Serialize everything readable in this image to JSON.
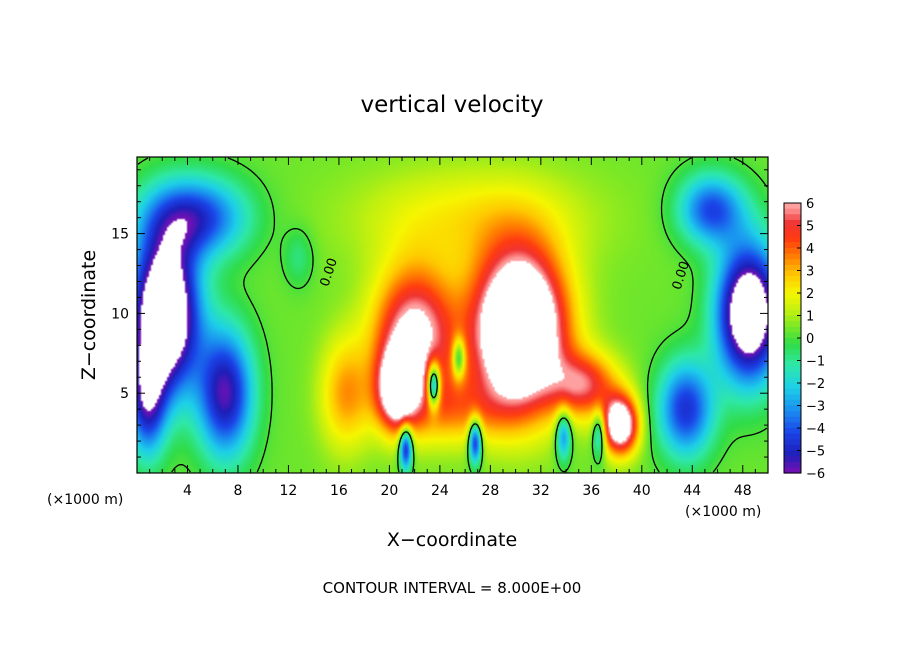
{
  "chart_data": {
    "type": "heatmap",
    "title": "vertical velocity",
    "xlabel": "X−coordinate",
    "ylabel": "Z−coordinate",
    "x_unit_label": "(×1000 m)",
    "y_unit_label": "(×1000 m)",
    "annotation": "CONTOUR INTERVAL = 8.000E+00",
    "xlim": [
      0,
      50
    ],
    "ylim": [
      0,
      19.8
    ],
    "x_ticks": [
      "4",
      "8",
      "12",
      "16",
      "20",
      "24",
      "28",
      "32",
      "36",
      "40",
      "44",
      "48"
    ],
    "y_ticks": [
      "5",
      "10",
      "15"
    ],
    "contour_labels": [
      {
        "text": "0.00",
        "x": 15.5,
        "z": 12.5
      },
      {
        "text": "0.00",
        "x": 43.4,
        "z": 12.3
      }
    ],
    "colorbar": {
      "ticks": [
        "6",
        "5",
        "4",
        "3",
        "2",
        "1",
        "0",
        "−1",
        "−2",
        "−3",
        "−4",
        "−5",
        "−6"
      ],
      "range": [
        -6,
        6
      ],
      "saturated_high_color": "#ffffff",
      "saturated_low_color": "#ffffff",
      "stops": [
        {
          "v": -6,
          "c": "#7a10b4"
        },
        {
          "v": -5.2,
          "c": "#1e1eb8"
        },
        {
          "v": -4.2,
          "c": "#1a44e8"
        },
        {
          "v": -3.2,
          "c": "#1a90f0"
        },
        {
          "v": -2.2,
          "c": "#1ed0e8"
        },
        {
          "v": -1.2,
          "c": "#2ee8a8"
        },
        {
          "v": -0.3,
          "c": "#30dc48"
        },
        {
          "v": 0.5,
          "c": "#7ae826"
        },
        {
          "v": 1.2,
          "c": "#c0f010"
        },
        {
          "v": 2.0,
          "c": "#f6f600"
        },
        {
          "v": 2.8,
          "c": "#ffc800"
        },
        {
          "v": 3.5,
          "c": "#ff8800"
        },
        {
          "v": 4.4,
          "c": "#ff3c10"
        },
        {
          "v": 5.1,
          "c": "#f03434"
        },
        {
          "v": 5.8,
          "c": "#ffa0a0"
        }
      ]
    },
    "features": [
      {
        "kind": "updraft",
        "x": 30.3,
        "z": 9.0,
        "sx": 3.6,
        "sz": 4.8,
        "amp": 11
      },
      {
        "kind": "updraft",
        "x": 22.0,
        "z": 8.6,
        "sx": 3.2,
        "sz": 4.2,
        "amp": 6.5
      },
      {
        "kind": "updraft",
        "x": 20.6,
        "z": 5.3,
        "sx": 1.5,
        "sz": 2.4,
        "amp": 6.5
      },
      {
        "kind": "updraft",
        "x": 35.5,
        "z": 5.5,
        "sx": 2.6,
        "sz": 2.0,
        "amp": 4.5
      },
      {
        "kind": "updraft",
        "x": 38.3,
        "z": 3.0,
        "sx": 1.4,
        "sz": 1.8,
        "amp": 8
      },
      {
        "kind": "updraft",
        "x": 26.5,
        "z": 16.0,
        "sx": 9.0,
        "sz": 3.2,
        "amp": 1.8
      },
      {
        "kind": "updraft",
        "x": 16.5,
        "z": 5.0,
        "sx": 2.0,
        "sz": 3.5,
        "amp": 2.8
      },
      {
        "kind": "updraft",
        "x": 24.8,
        "z": 4.0,
        "sx": 5.0,
        "sz": 2.2,
        "amp": 2.6
      },
      {
        "kind": "downdraft",
        "x": 2.2,
        "z": 10.0,
        "sx": 2.6,
        "sz": 4.8,
        "amp": -10
      },
      {
        "kind": "downdraft",
        "x": 4.6,
        "z": 16.0,
        "sx": 4.0,
        "sz": 2.5,
        "amp": -5
      },
      {
        "kind": "downdraft",
        "x": 7.0,
        "z": 5.0,
        "sx": 2.2,
        "sz": 4.0,
        "amp": -6
      },
      {
        "kind": "downdraft",
        "x": 0.8,
        "z": 4.5,
        "sx": 1.5,
        "sz": 3.5,
        "amp": -5
      },
      {
        "kind": "downdraft",
        "x": 48.5,
        "z": 10.0,
        "sx": 2.5,
        "sz": 4.2,
        "amp": -9
      },
      {
        "kind": "downdraft",
        "x": 45.5,
        "z": 16.5,
        "sx": 2.6,
        "sz": 2.2,
        "amp": -4.5
      },
      {
        "kind": "downdraft",
        "x": 43.5,
        "z": 4.0,
        "sx": 2.2,
        "sz": 3.0,
        "amp": -5
      },
      {
        "kind": "downdraft",
        "x": 23.5,
        "z": 5.5,
        "sx": 0.5,
        "sz": 1.4,
        "amp": -7
      },
      {
        "kind": "downdraft",
        "x": 25.5,
        "z": 7.2,
        "sx": 0.5,
        "sz": 1.3,
        "amp": -4
      },
      {
        "kind": "downdraft",
        "x": 21.3,
        "z": 1.6,
        "sx": 0.5,
        "sz": 1.4,
        "amp": -6
      },
      {
        "kind": "downdraft",
        "x": 26.8,
        "z": 2.0,
        "sx": 0.5,
        "sz": 1.4,
        "amp": -6
      },
      {
        "kind": "downdraft",
        "x": 33.8,
        "z": 2.4,
        "sx": 0.6,
        "sz": 1.6,
        "amp": -4
      },
      {
        "kind": "downdraft",
        "x": 36.6,
        "z": 2.5,
        "sx": 0.5,
        "sz": 1.5,
        "amp": -3.5
      },
      {
        "kind": "downdraft",
        "x": 12.8,
        "z": 13.5,
        "sx": 1.2,
        "sz": 1.8,
        "amp": -1.2
      }
    ]
  }
}
